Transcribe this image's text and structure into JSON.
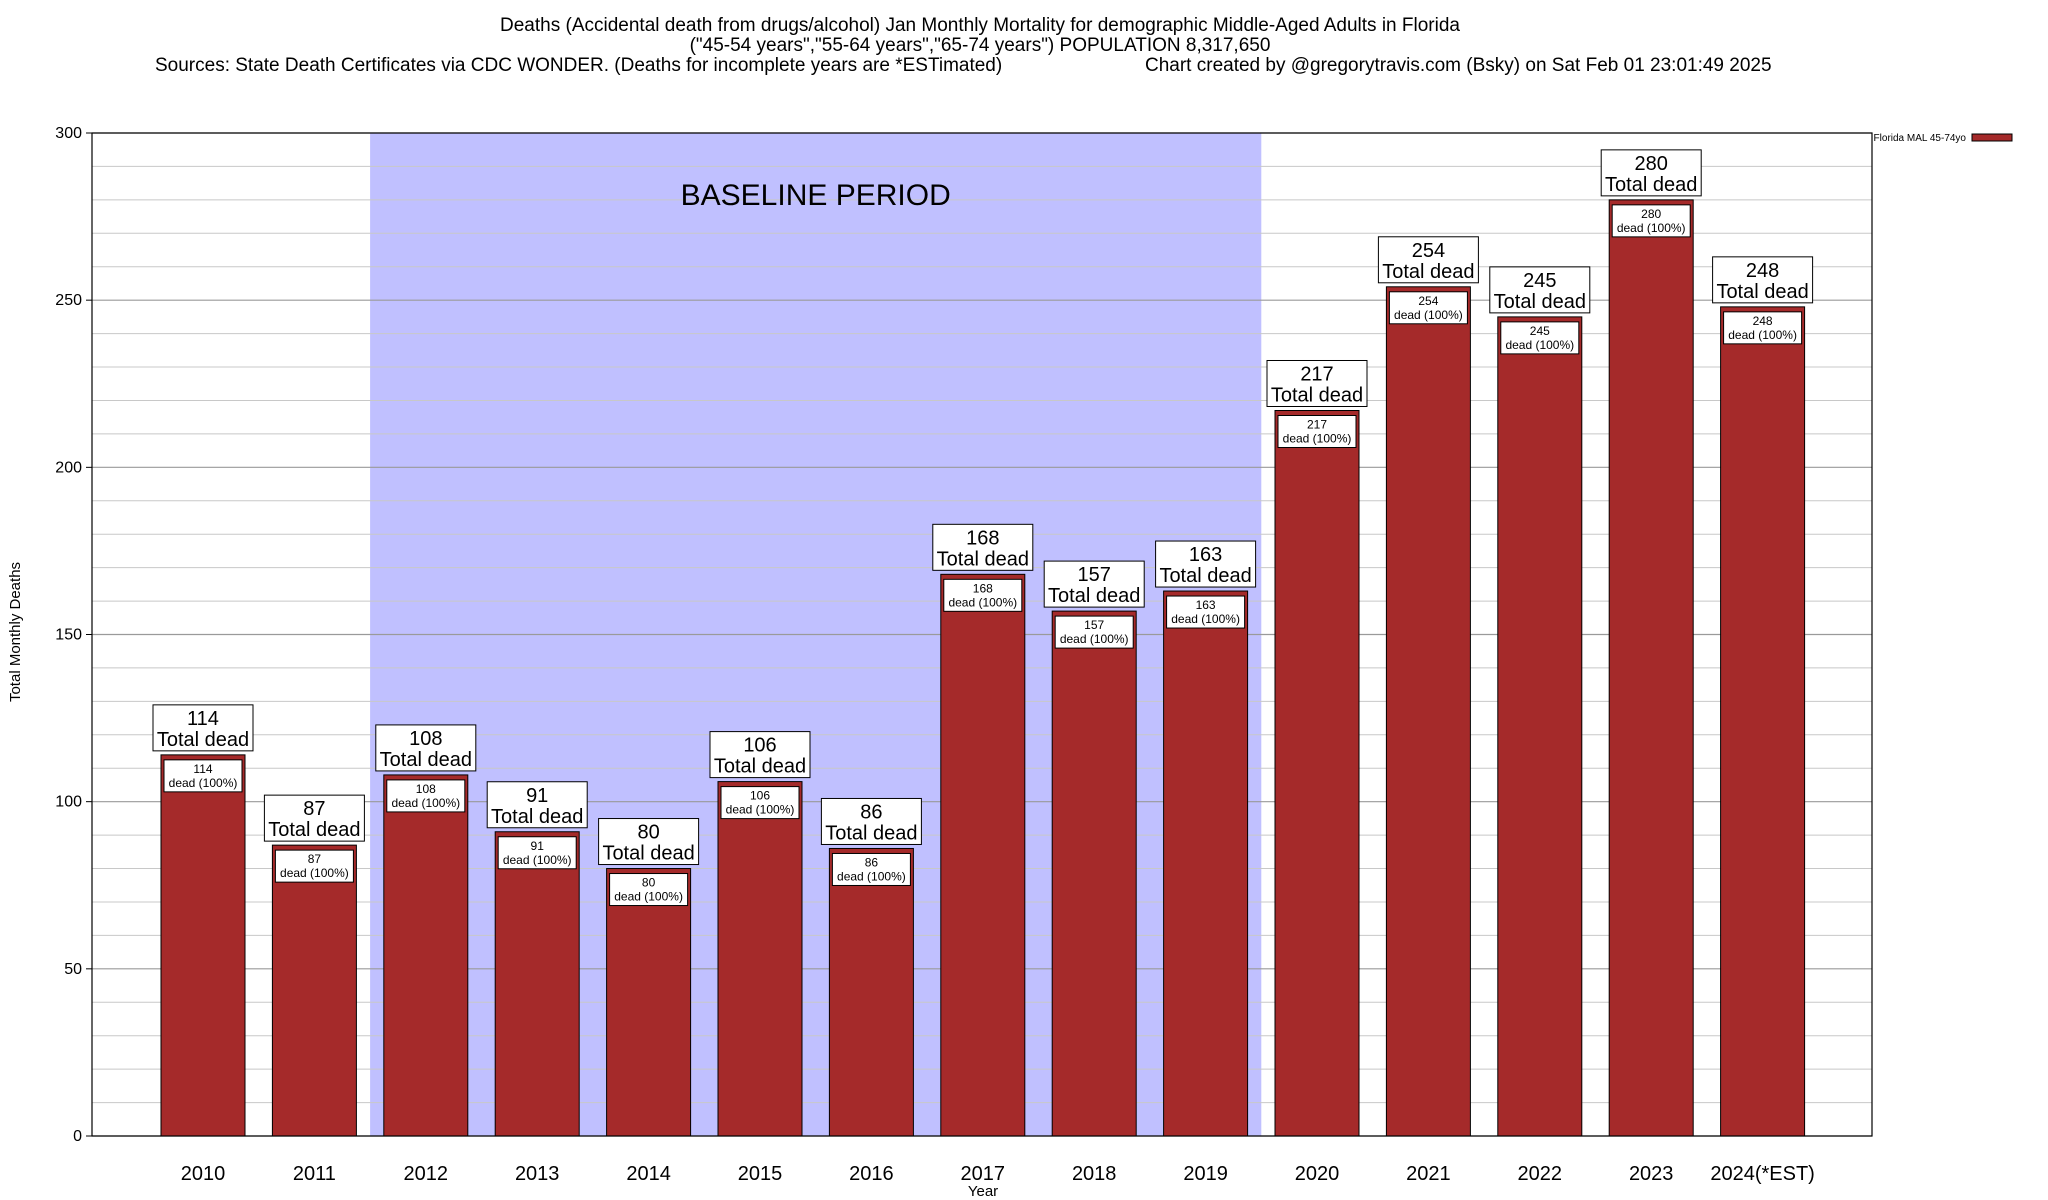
{
  "chart_data": {
    "type": "bar",
    "title_lines": [
      "Deaths (Accidental death from drugs/alcohol) Jan Monthly Mortality for demographic Middle-Aged Adults in Florida",
      "(\"45-54 years\",\"55-64 years\",\"65-74 years\") POPULATION 8,317,650"
    ],
    "sources_text": "Sources: State Death Certificates via CDC WONDER. (Deaths for incomplete years are *ESTimated)",
    "credit_text": "Chart created by @gregorytravis.com (Bsky) on Sat Feb 01 23:01:49 2025",
    "xlabel": "Year",
    "ylabel": "Total Monthly Deaths",
    "ylim": [
      0,
      300
    ],
    "yticks": [
      0,
      50,
      100,
      150,
      200,
      250,
      300
    ],
    "grid": true,
    "categories": [
      "2010",
      "2011",
      "2012",
      "2013",
      "2014",
      "2015",
      "2016",
      "2017",
      "2018",
      "2019",
      "2020",
      "2021",
      "2022",
      "2023",
      "2024(*EST)"
    ],
    "series": [
      {
        "name": "Florida MAL 45-74yo",
        "values": [
          114,
          87,
          108,
          91,
          80,
          106,
          86,
          168,
          157,
          163,
          217,
          254,
          245,
          280,
          248
        ],
        "color": "#a52a2a"
      }
    ],
    "bar_label_top_suffix": "Total dead",
    "bar_label_inner_suffix": "dead (100%)",
    "annotation": {
      "text": "BASELINE PERIOD",
      "start_category": "2012",
      "end_category": "2019",
      "color": "#c0c0ff"
    },
    "legend_position": "top-right"
  }
}
